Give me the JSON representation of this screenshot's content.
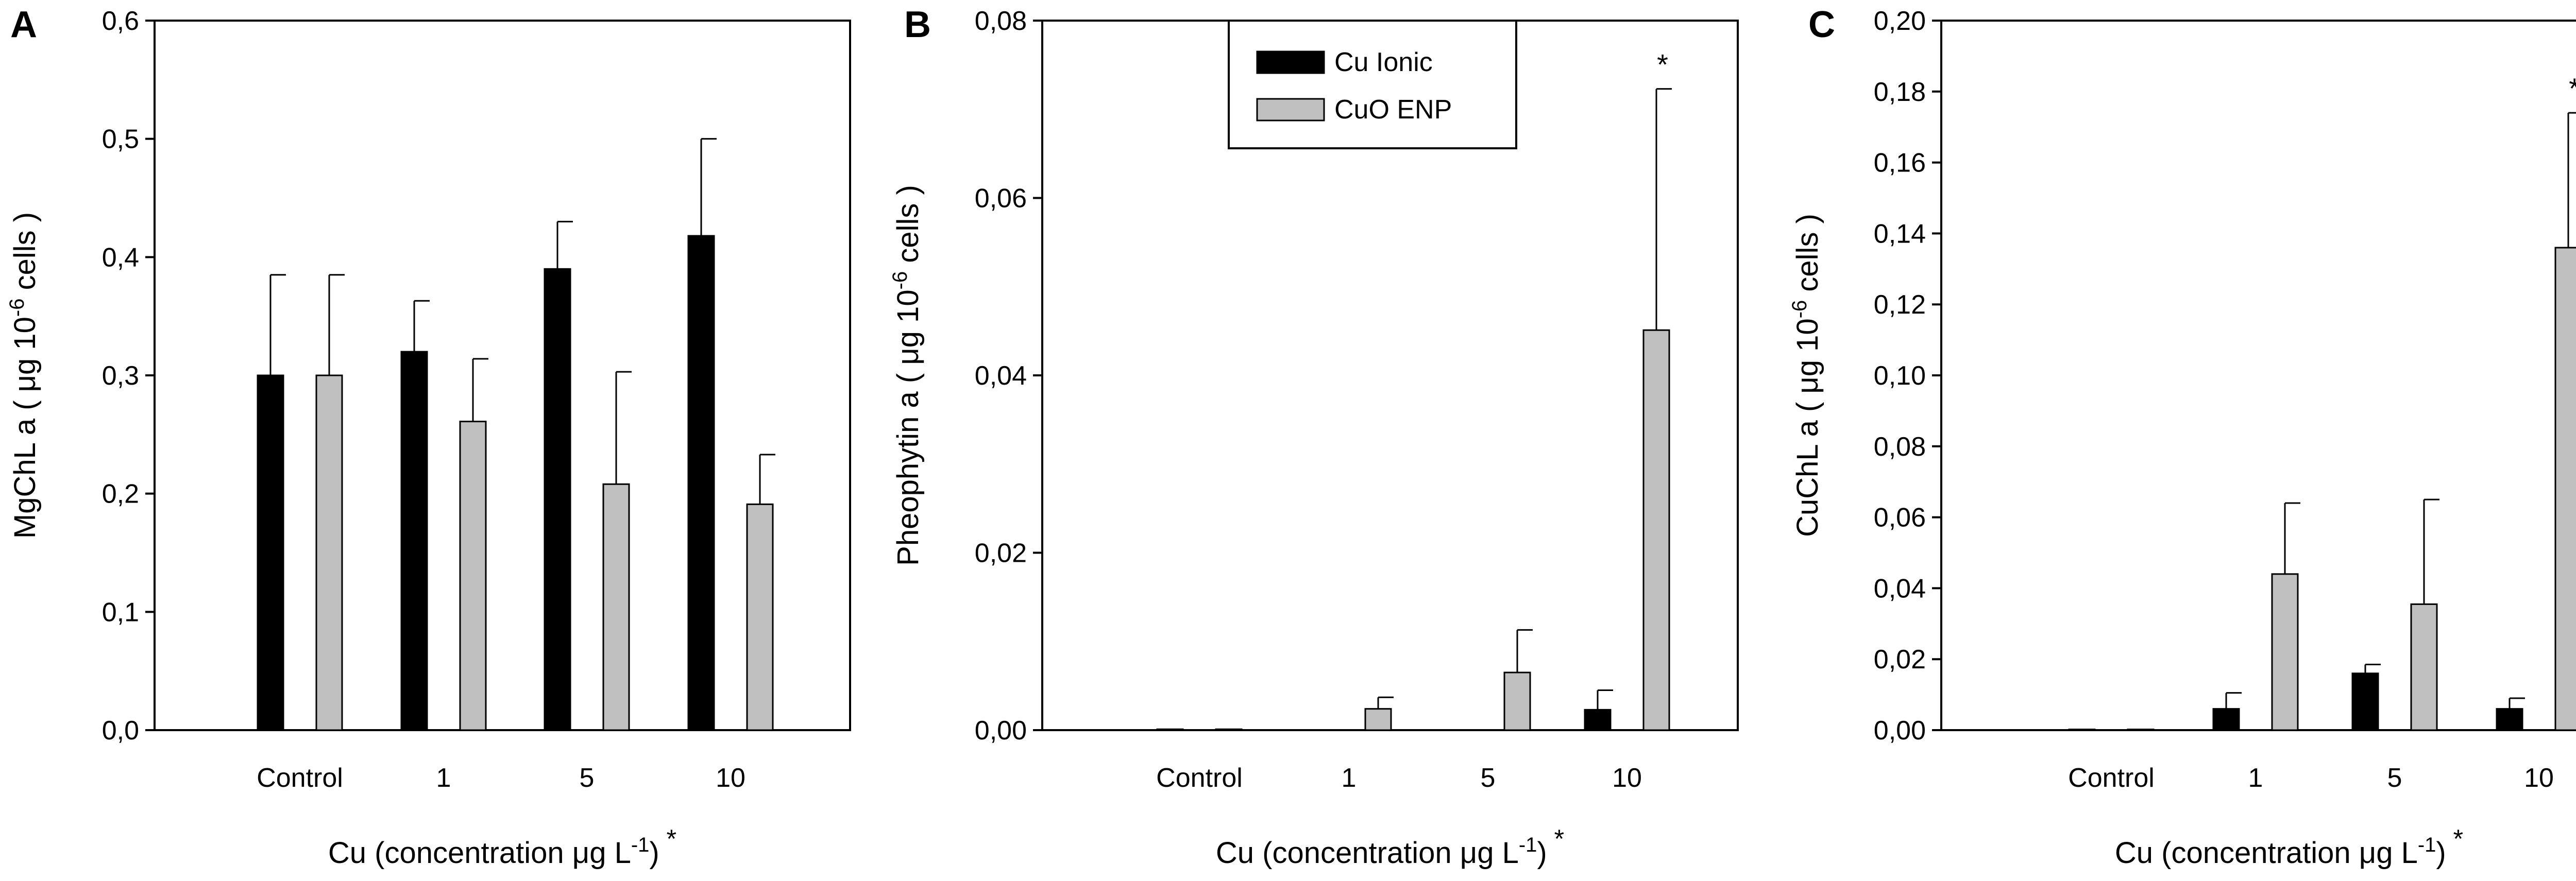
{
  "colors": {
    "Cu Ionic": "#000000",
    "CuO ENP": "#c0c0c0",
    "axis": "#000000"
  },
  "legend": {
    "entries": [
      {
        "label": "Cu Ionic",
        "color": "#000000"
      },
      {
        "label": "CuO ENP",
        "color": "#c0c0c0"
      }
    ]
  },
  "chart_data": [
    {
      "panel": "A",
      "type": "bar",
      "categories": [
        "Control",
        "1",
        "5",
        "10"
      ],
      "series": [
        {
          "name": "Cu Ionic",
          "values": [
            0.3,
            0.32,
            0.39,
            0.418
          ],
          "errors": [
            0.085,
            0.043,
            0.04,
            0.082
          ]
        },
        {
          "name": "CuO ENP",
          "values": [
            0.3,
            0.261,
            0.208,
            0.191
          ],
          "errors": [
            0.085,
            0.053,
            0.095,
            0.042
          ]
        }
      ],
      "ylabel_main": "MgChL a ( ",
      "ylabel_unit": "μg 10",
      "ylabel_sup": "-6",
      "ylabel_end": " cells )",
      "xlabel_main": "Cu (concentration ",
      "xlabel_unit": "μg L",
      "xlabel_sup": "-1",
      "xlabel_end": ")",
      "xlabel_star": "*",
      "ylim": [
        0,
        0.6
      ],
      "yticks": [
        "0,0",
        "0,1",
        "0,2",
        "0,3",
        "0,4",
        "0,5",
        "0,6"
      ],
      "ytick_values": [
        0,
        0.1,
        0.2,
        0.3,
        0.4,
        0.5,
        0.6
      ],
      "annotations": []
    },
    {
      "panel": "B",
      "type": "bar",
      "categories": [
        "Control",
        "1",
        "5",
        "10"
      ],
      "series": [
        {
          "name": "Cu Ionic",
          "values": [
            0.0001,
            0,
            0,
            0.0023
          ],
          "errors": [
            0,
            0,
            0,
            0.0022
          ]
        },
        {
          "name": "CuO ENP",
          "values": [
            0.0001,
            0.0024,
            0.0065,
            0.0451
          ],
          "errors": [
            0,
            0.0013,
            0.0048,
            0.0272
          ]
        }
      ],
      "ylabel_main": "Pheophytin a (  ",
      "ylabel_unit": "μg 10",
      "ylabel_sup": "-6",
      "ylabel_end": " cells )",
      "xlabel_main": "Cu (concentration ",
      "xlabel_unit": "μg L",
      "xlabel_sup": "-1",
      "xlabel_end": ")",
      "xlabel_star": "*",
      "ylim": [
        0,
        0.08
      ],
      "yticks": [
        "0,00",
        "0,02",
        "0,04",
        "0,06",
        "0,08"
      ],
      "ytick_values": [
        0,
        0.02,
        0.04,
        0.06,
        0.08
      ],
      "annotations": [
        {
          "category": "10",
          "series": "CuO ENP",
          "text": "*"
        }
      ]
    },
    {
      "panel": "C",
      "type": "bar",
      "categories": [
        "Control",
        "1",
        "5",
        "10"
      ],
      "series": [
        {
          "name": "Cu Ionic",
          "values": [
            0.0002,
            0.006,
            0.016,
            0.006
          ],
          "errors": [
            0,
            0.0045,
            0.0025,
            0.003
          ]
        },
        {
          "name": "CuO ENP",
          "values": [
            0.0002,
            0.044,
            0.0355,
            0.136
          ],
          "errors": [
            0,
            0.02,
            0.0295,
            0.038
          ]
        }
      ],
      "ylabel_main": "CuChL a ( ",
      "ylabel_unit": "μg 10",
      "ylabel_sup": "-6",
      "ylabel_end": " cells )",
      "xlabel_main": "Cu (concentration ",
      "xlabel_unit": "μg L",
      "xlabel_sup": "-1",
      "xlabel_end": ")",
      "xlabel_star": "*",
      "ylim": [
        0,
        0.2
      ],
      "yticks": [
        "0,00",
        "0,02",
        "0,04",
        "0,06",
        "0,08",
        "0,10",
        "0,12",
        "0,14",
        "0,16",
        "0,18",
        "0,20"
      ],
      "ytick_values": [
        0,
        0.02,
        0.04,
        0.06,
        0.08,
        0.1,
        0.12,
        0.14,
        0.16,
        0.18,
        0.2
      ],
      "annotations": [
        {
          "category": "10",
          "series": "CuO ENP",
          "text": "*"
        }
      ]
    }
  ]
}
